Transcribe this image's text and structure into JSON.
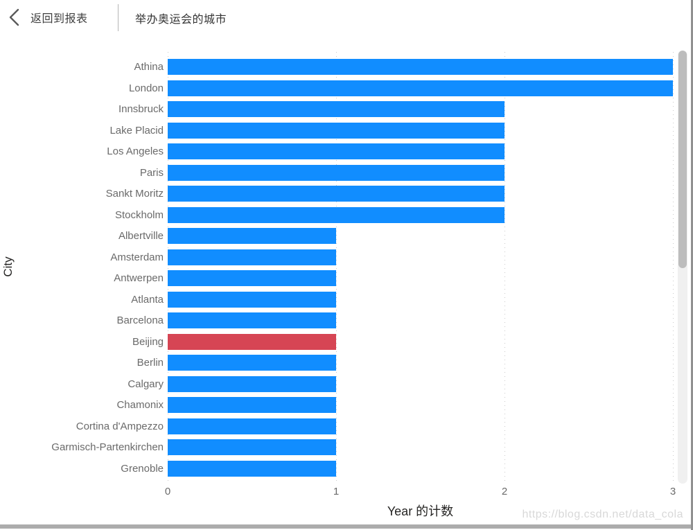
{
  "header": {
    "back_label": "返回到报表",
    "title": "举办奥运会的城市"
  },
  "chart_data": {
    "type": "bar",
    "orientation": "horizontal",
    "xlabel": "Year 的计数",
    "ylabel": "City",
    "xlim": [
      0,
      3
    ],
    "xticks": [
      0,
      1,
      2,
      3
    ],
    "grid": "dotted-vertical",
    "legend": "none",
    "bar_color": "#118DFF",
    "highlight_color": "#D64554",
    "highlight_category": "Beijing",
    "categories": [
      "Athina",
      "London",
      "Innsbruck",
      "Lake Placid",
      "Los Angeles",
      "Paris",
      "Sankt Moritz",
      "Stockholm",
      "Albertville",
      "Amsterdam",
      "Antwerpen",
      "Atlanta",
      "Barcelona",
      "Beijing",
      "Berlin",
      "Calgary",
      "Chamonix",
      "Cortina d'Ampezzo",
      "Garmisch-Partenkirchen",
      "Grenoble"
    ],
    "values": [
      3,
      3,
      2,
      2,
      2,
      2,
      2,
      2,
      1,
      1,
      1,
      1,
      1,
      1,
      1,
      1,
      1,
      1,
      1,
      1
    ]
  },
  "watermark": "https://blog.csdn.net/data_cola",
  "colors": {
    "header_text": "#3f3f3f",
    "axis_title": "#252423",
    "axis_label": "#6a6a6a",
    "gridline": "#c9c9c9",
    "scroll_track": "#f0f0f0",
    "scroll_thumb": "#bdbdbd"
  }
}
